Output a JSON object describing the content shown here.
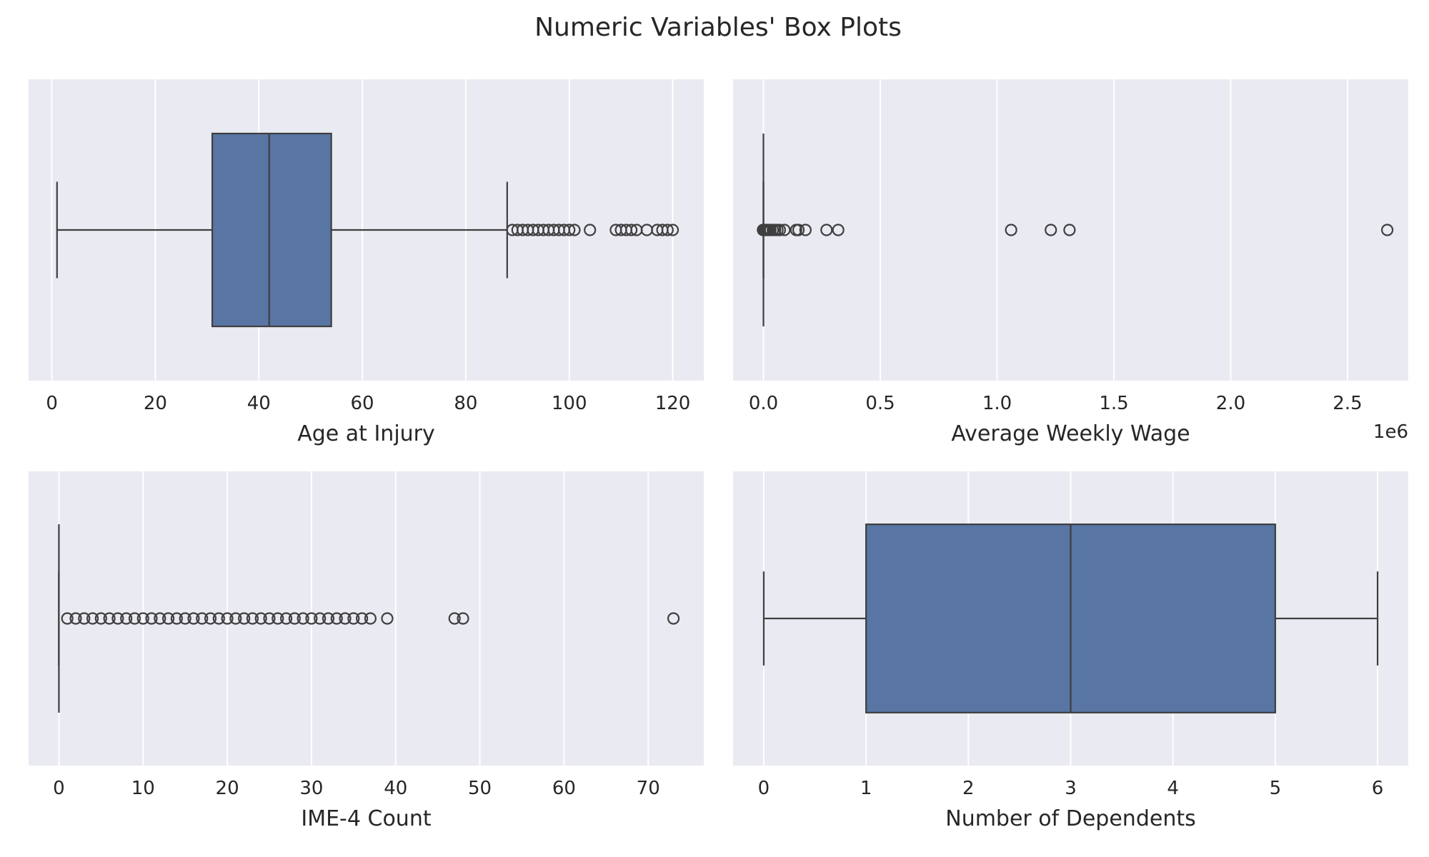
{
  "figure": {
    "title": "Numeric Variables' Box Plots"
  },
  "style": {
    "background": "#ffffff",
    "panel_bg": "#eaeaf2",
    "grid_color": "#ffffff",
    "box_fill": "#5875a4",
    "line_color": "#3f3f3f",
    "text_color": "#262626"
  },
  "chart_data": [
    {
      "type": "box",
      "orientation": "horizontal",
      "xlabel": "Age at Injury",
      "xlim": [
        -4.5,
        126
      ],
      "ticks": [
        0,
        20,
        40,
        60,
        80,
        100,
        120
      ],
      "tick_labels": [
        "0",
        "20",
        "40",
        "60",
        "80",
        "100",
        "120"
      ],
      "offset_label": "",
      "grid": true,
      "box": {
        "whisker_low": 1,
        "q1": 31,
        "median": 42,
        "q3": 54,
        "whisker_high": 88
      },
      "outliers": [
        89,
        90,
        91,
        92,
        93,
        94,
        95,
        96,
        97,
        98,
        99,
        100,
        101,
        104,
        109,
        110,
        111,
        112,
        113,
        115,
        117,
        118,
        119,
        120
      ]
    },
    {
      "type": "box",
      "orientation": "horizontal",
      "xlabel": "Average Weekly Wage",
      "xlim": [
        -0.13,
        2.76
      ],
      "ticks": [
        0.0,
        0.5,
        1.0,
        1.5,
        2.0,
        2.5
      ],
      "tick_labels": [
        "0.0",
        "0.5",
        "1.0",
        "1.5",
        "2.0",
        "2.5"
      ],
      "offset_label": "1e6",
      "grid": true,
      "box": {
        "whisker_low": 0.0,
        "q1": 0.0,
        "median": 0.0,
        "q3": 0.0,
        "whisker_high": 0.0
      },
      "outliers": [
        -0.002,
        0.0,
        0.005,
        0.01,
        0.015,
        0.02,
        0.025,
        0.03,
        0.04,
        0.05,
        0.06,
        0.07,
        0.09,
        0.14,
        0.15,
        0.18,
        0.27,
        0.32,
        1.06,
        1.23,
        1.31,
        2.67
      ]
    },
    {
      "type": "box",
      "orientation": "horizontal",
      "xlabel": "IME-4 Count",
      "xlim": [
        -3.6,
        76.6
      ],
      "ticks": [
        0,
        10,
        20,
        30,
        40,
        50,
        60,
        70
      ],
      "tick_labels": [
        "0",
        "10",
        "20",
        "30",
        "40",
        "50",
        "60",
        "70"
      ],
      "offset_label": "",
      "grid": true,
      "box": {
        "whisker_low": 0,
        "q1": 0,
        "median": 0,
        "q3": 0,
        "whisker_high": 0
      },
      "outliers": [
        1,
        2,
        3,
        4,
        5,
        6,
        7,
        8,
        9,
        10,
        11,
        12,
        13,
        14,
        15,
        16,
        17,
        18,
        19,
        20,
        21,
        22,
        23,
        24,
        25,
        26,
        27,
        28,
        29,
        30,
        31,
        32,
        33,
        34,
        35,
        36,
        37,
        39,
        47,
        48,
        73
      ]
    },
    {
      "type": "box",
      "orientation": "horizontal",
      "xlabel": "Number of Dependents",
      "xlim": [
        -0.3,
        6.3
      ],
      "ticks": [
        0,
        1,
        2,
        3,
        4,
        5,
        6
      ],
      "tick_labels": [
        "0",
        "1",
        "2",
        "3",
        "4",
        "5",
        "6"
      ],
      "offset_label": "",
      "grid": true,
      "box": {
        "whisker_low": 0,
        "q1": 1,
        "median": 3,
        "q3": 5,
        "whisker_high": 6
      },
      "outliers": []
    }
  ]
}
